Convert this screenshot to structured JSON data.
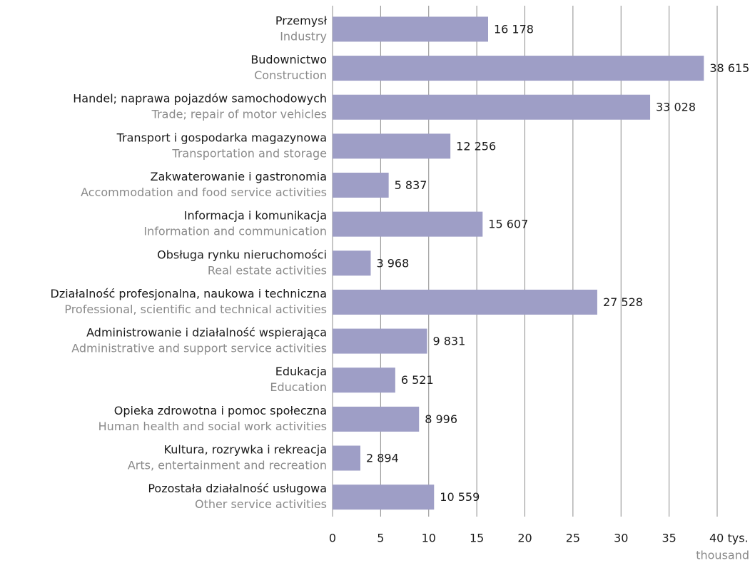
{
  "chart_data": {
    "type": "barh",
    "categories": [
      "Przemysł",
      "Budownictwo",
      "Handel; naprawa pojazdów samochodowych",
      "Transport i gospodarka magazynowa",
      "Zakwaterowanie i gastronomia",
      "Informacja i komunikacja",
      "Obsługa rynku nieruchomości",
      "Działalność profesjonalna, naukowa i techniczna",
      "Administrowanie i działalność wspierająca",
      "Edukacja",
      "Opieka zdrowotna i pomoc społeczna",
      "Kultura, rozrywka i rekreacja",
      "Pozostała działalność usługowa"
    ],
    "categories_en": [
      "Industry",
      "Construction",
      "Trade; repair of motor vehicles",
      "Transportation and storage",
      "Accommodation and food service activities",
      "Information and communication",
      "Real estate activities",
      "Professional, scientific and technical activities",
      "Administrative and support service activities",
      "Education",
      "Human health and social work activities",
      "Arts, entertainment and recreation",
      "Other service activities"
    ],
    "values": [
      16.178,
      38.615,
      33.028,
      12.256,
      5.837,
      15.607,
      3.968,
      27.528,
      9.831,
      6.521,
      8.996,
      2.894,
      10.559
    ],
    "value_labels": [
      "16 178",
      "38 615",
      "33 028",
      "12 256",
      "5 837",
      "15 607",
      "3 968",
      "27 528",
      "9 831",
      "6 521",
      "8 996",
      "2 894",
      "10 559"
    ],
    "color": "#9e9ec6",
    "xlim": [
      0,
      40
    ],
    "xticks": [
      0,
      5,
      10,
      15,
      20,
      25,
      30,
      35,
      {
        "value": 40,
        "label": "40 tys."
      }
    ],
    "xlabel": "thousand",
    "grid": true
  }
}
